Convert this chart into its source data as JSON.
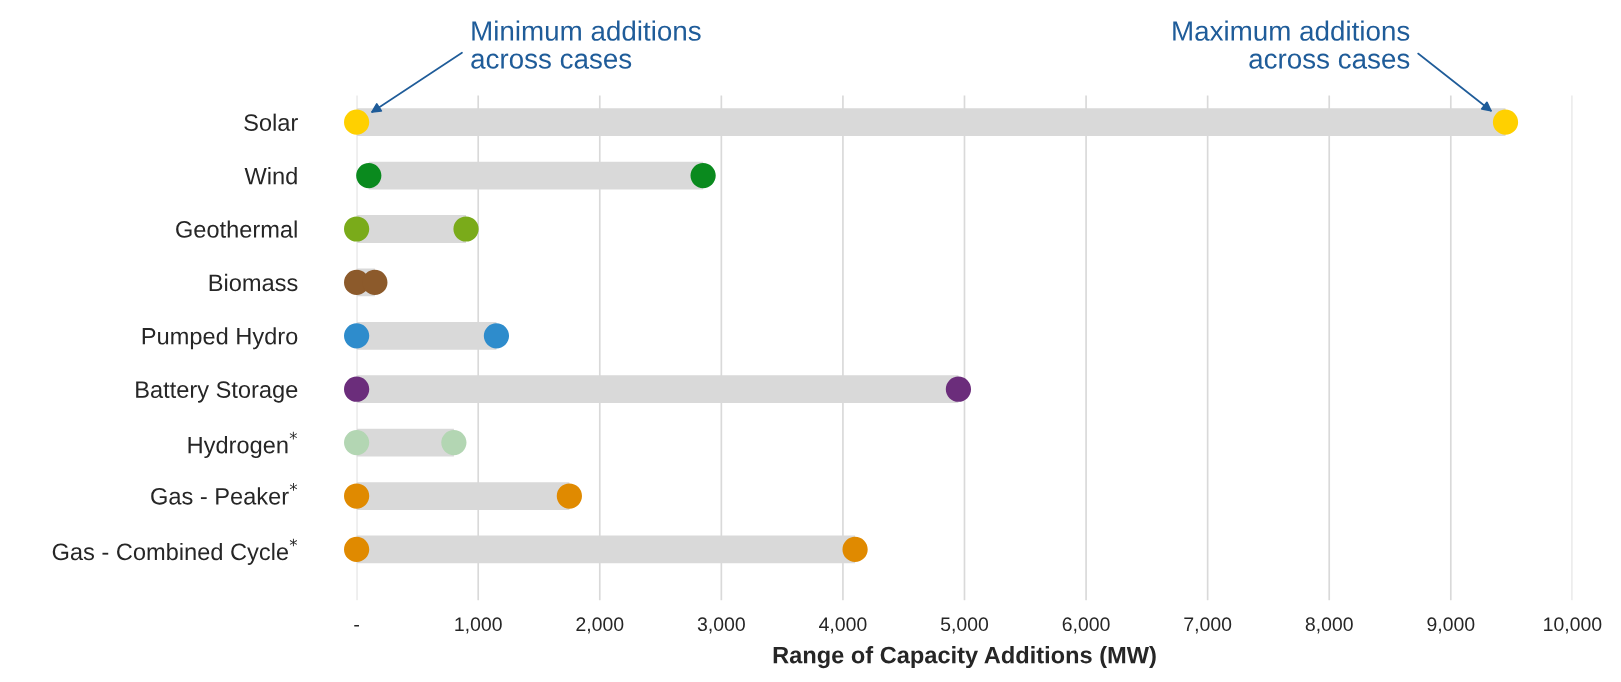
{
  "chart_data": {
    "type": "scatter",
    "orientation": "horizontal",
    "categories": [
      "Solar",
      "Wind",
      "Geothermal",
      "Biomass",
      "Pumped Hydro",
      "Battery Storage",
      "Hydrogen$^{*}$",
      "Gas - Peaker$^{*}$",
      "Gas - Combined Cycle$^{*}$"
    ],
    "series": [
      {
        "colors": [
          "#ffd000",
          "#0a8a1e",
          "#7aab1a",
          "#8c5a2b",
          "#2e8ccc",
          "#6b2d7b",
          "#b3d6b3",
          "#e08a00",
          "#e08a00"
        ],
        "values": [
          0,
          100,
          0,
          0,
          0,
          0,
          0,
          0,
          0
        ]
      },
      {
        "colors": [
          "#ffd000",
          "#0a8a1e",
          "#7aab1a",
          "#8c5a2b",
          "#2e8ccc",
          "#6b2d7b",
          "#b3d6b3",
          "#e08a00",
          "#e08a00"
        ],
        "values": [
          9450,
          2850,
          900,
          150,
          1150,
          4950,
          800,
          1750,
          4100
        ]
      }
    ],
    "xlim": [
      0,
      10000
    ],
    "xticks": [
      {
        "value": 0,
        "label": "-"
      },
      {
        "value": 1000,
        "label": "1,000"
      },
      {
        "value": 2000,
        "label": "2,000"
      },
      {
        "value": 3000,
        "label": "3,000"
      },
      {
        "value": 4000,
        "label": "4,000"
      },
      {
        "value": 5000,
        "label": "5,000"
      },
      {
        "value": 6000,
        "label": "6,000"
      },
      {
        "value": 7000,
        "label": "7,000"
      },
      {
        "value": 8000,
        "label": "8,000"
      },
      {
        "value": 9000,
        "label": "9,000"
      },
      {
        "value": 10000,
        "label": "10,000"
      }
    ],
    "xlabel": "Range of Capacity Additions (MW)",
    "grid": "x",
    "annotations": [
      "Minimum additions\nacross cases",
      "Maximum additions\nacross cases"
    ]
  }
}
